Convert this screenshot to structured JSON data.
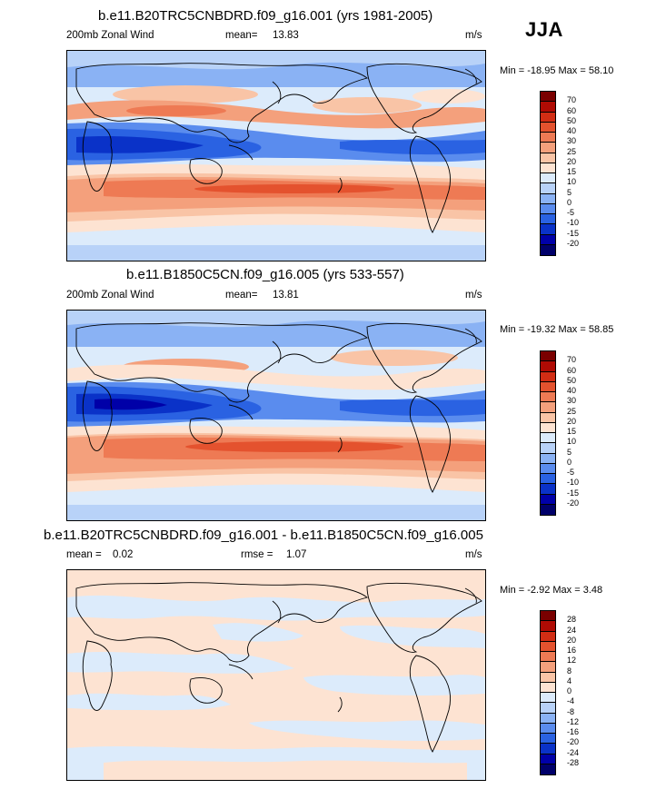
{
  "season": "JJA",
  "palette": {
    "wind": [
      "#00006a",
      "#0000a8",
      "#0a32c8",
      "#2a62e2",
      "#5a8cee",
      "#8ab2f4",
      "#b8d2f8",
      "#dcebfb",
      "#fde3d2",
      "#f9c4a6",
      "#f4a07c",
      "#ee7a54",
      "#e4522e",
      "#d22d14",
      "#b00b04",
      "#7a0000"
    ],
    "diff": [
      "#00006a",
      "#0000a8",
      "#0a32c8",
      "#2a62e2",
      "#5a8cee",
      "#8ab2f4",
      "#b8d2f8",
      "#dcebfb",
      "#fde3d2",
      "#f9c4a6",
      "#f4a07c",
      "#ee7a54",
      "#e4522e",
      "#d22d14",
      "#b00b04",
      "#7a0000"
    ]
  },
  "panels": [
    {
      "title": "b.e11.B20TRC5CNBDRD.f09_g16.001 (yrs 1981-2005)",
      "variable": "200mb Zonal Wind",
      "stat_label": "mean=",
      "stat_value": "13.83",
      "units": "m/s",
      "minmax": "Min = -18.95 Max =  58.10",
      "levels": [
        "70",
        "60",
        "50",
        "40",
        "30",
        "25",
        "20",
        "15",
        "10",
        "5",
        "0",
        "-5",
        "-10",
        "-15",
        "-20"
      ],
      "kind": "wind"
    },
    {
      "title": "b.e11.B1850C5CN.f09_g16.005 (yrs 533-557)",
      "variable": "200mb Zonal Wind",
      "stat_label": "mean=",
      "stat_value": "13.81",
      "units": "m/s",
      "minmax": "Min = -19.32 Max =  58.85",
      "levels": [
        "70",
        "60",
        "50",
        "40",
        "30",
        "25",
        "20",
        "15",
        "10",
        "5",
        "0",
        "-5",
        "-10",
        "-15",
        "-20"
      ],
      "kind": "wind"
    },
    {
      "title": "b.e11.B20TRC5CNBDRD.f09_g16.001 - b.e11.B1850C5CN.f09_g16.005",
      "stat_label": "mean =",
      "stat_value": "0.02",
      "stat2_label": "rmse =",
      "stat2_value": "1.07",
      "units": "m/s",
      "minmax": "Min =  -2.92 Max =   3.48",
      "levels": [
        "28",
        "24",
        "20",
        "16",
        "12",
        "8",
        "4",
        "0",
        "-4",
        "-8",
        "-12",
        "-16",
        "-20",
        "-24",
        "-28"
      ],
      "kind": "diff"
    }
  ]
}
